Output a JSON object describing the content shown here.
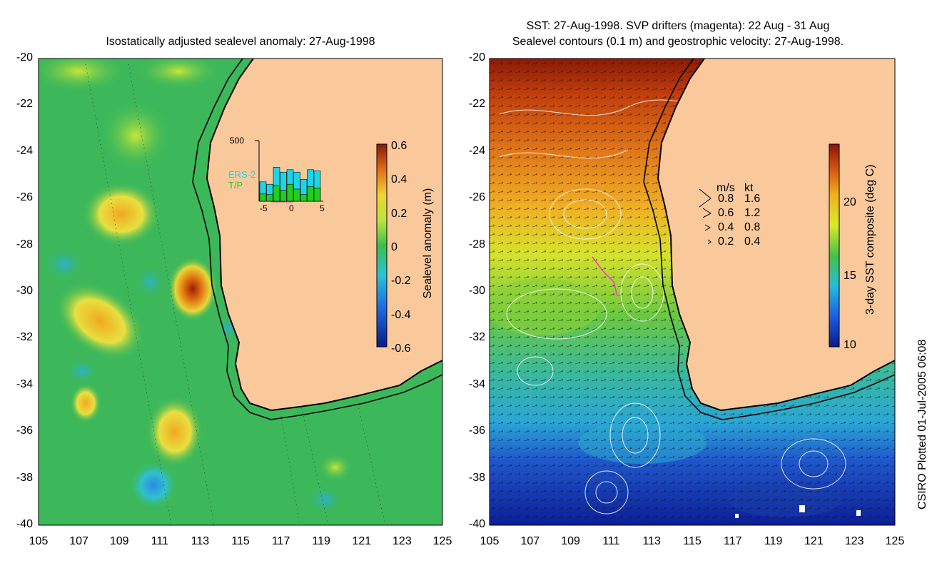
{
  "left_panel": {
    "title": "Isostatically adjusted sealevel anomaly: 27-Aug-1998",
    "colorbar": {
      "label": "Sealevel anomaly (m)",
      "ticks": [
        "0.6",
        "0.4",
        "0.2",
        "0",
        "-0.2",
        "-0.4",
        "-0.6"
      ]
    },
    "inset": {
      "ymax_label": "500",
      "x_ticks": [
        "-5",
        "0",
        "5"
      ],
      "legend": [
        "ERS-2",
        "T/P"
      ],
      "legend_colors": [
        "#22d3e6",
        "#22cc22"
      ],
      "tp_values": [
        60,
        55,
        130,
        90,
        140,
        100,
        55,
        120,
        110
      ],
      "ers_values": [
        160,
        140,
        280,
        240,
        260,
        240,
        180,
        260,
        250
      ]
    }
  },
  "right_panel": {
    "title_line1": "SST: 27-Aug-1998. SVP drifters (magenta): 22 Aug - 31 Aug",
    "title_line2": "Sealevel contours (0.1 m) and geostrophic velocity: 27-Aug-1998.",
    "colorbar": {
      "label": "3-day SST composite (deg C)",
      "ticks": [
        "20",
        "15",
        "10"
      ]
    },
    "velocity_legend": {
      "header": [
        "m/s",
        "kt"
      ],
      "rows": [
        [
          "0.8",
          "1.6"
        ],
        [
          "0.6",
          "1.2"
        ],
        [
          "0.4",
          "0.8"
        ],
        [
          "0.2",
          "0.4"
        ]
      ]
    }
  },
  "axes": {
    "y_ticks": [
      "-20",
      "-22",
      "-24",
      "-26",
      "-28",
      "-30",
      "-32",
      "-34",
      "-36",
      "-38",
      "-40"
    ],
    "x_ticks": [
      "105",
      "107",
      "109",
      "111",
      "113",
      "115",
      "117",
      "119",
      "121",
      "123",
      "125"
    ]
  },
  "credit": "CSIRO Plotted 01-Jul-2005 06:08",
  "colors": {
    "land": "#f9c99c",
    "ocean_left": "#3cb85a",
    "coast": "#000000"
  }
}
